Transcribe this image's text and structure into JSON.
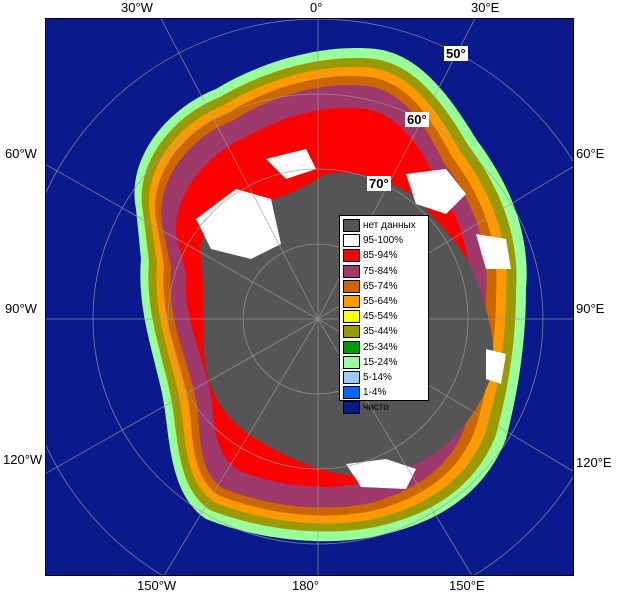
{
  "map": {
    "ocean_color": "#0a1a8c",
    "land_color": "#555555",
    "top_labels": [
      "30°W",
      "0°",
      "30°E"
    ],
    "bottom_labels": [
      "150°W",
      "180°",
      "150°E"
    ],
    "left_labels": [
      "60°W",
      "90°W",
      "120°W"
    ],
    "right_labels": [
      "60°E",
      "90°E",
      "120°E"
    ],
    "latitude_labels": [
      "50°",
      "60°",
      "70°"
    ]
  },
  "legend": {
    "items": [
      {
        "label": "нет данных",
        "color": "#555555"
      },
      {
        "label": "95-100%",
        "color": "#ffffff"
      },
      {
        "label": "85-94%",
        "color": "#ff0000"
      },
      {
        "label": "75-84%",
        "color": "#a0396b"
      },
      {
        "label": "65-74%",
        "color": "#cc6600"
      },
      {
        "label": "55-64%",
        "color": "#ff9900"
      },
      {
        "label": "45-54%",
        "color": "#ffff00"
      },
      {
        "label": "35-44%",
        "color": "#999900"
      },
      {
        "label": "25-34%",
        "color": "#009900"
      },
      {
        "label": "15-24%",
        "color": "#99ff99"
      },
      {
        "label": "5-14%",
        "color": "#99ccff"
      },
      {
        "label": "1-4%",
        "color": "#0066ff"
      },
      {
        "label": "чисто",
        "color": "#0a1a8c"
      }
    ]
  }
}
